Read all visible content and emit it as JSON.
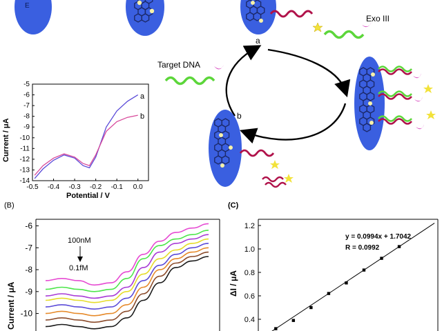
{
  "colors": {
    "electrode": "#3a5fe0",
    "graphene": "#1c2a6b",
    "probe": "#b0124a",
    "target": "#5cd63a",
    "exo": "#d84ac0",
    "star": "#f2e23a",
    "bead": "#f7f1a8"
  },
  "scheme": {
    "electrode_letter": "E",
    "target_label": "Target DNA",
    "exo_label": "Exo III",
    "step_a": "a",
    "step_b": "b"
  },
  "panelA_inset": {
    "ylabel": "Current / μA",
    "xlabel": "Potential / V",
    "curve_a_label": "a",
    "curve_b_label": "b"
  },
  "panelB": {
    "label": "(B)",
    "ylabel": "Current / μA",
    "high_label": "100nM",
    "low_label": "0.1fM"
  },
  "panelC": {
    "label": "(C)",
    "ylabel": "ΔI / μA",
    "equation": "y = 0.0994x + 1.7042",
    "r_value": "R = 0.0992"
  },
  "chart_data": [
    {
      "type": "line",
      "title": "",
      "xlabel": "Potential / V",
      "ylabel": "Current / μA",
      "xlim": [
        -0.5,
        0.05
      ],
      "ylim": [
        -14,
        -5
      ],
      "x_ticks": [
        "-0.5",
        "-0.4",
        "-0.3",
        "-0.2",
        "-0.1",
        "0.0"
      ],
      "y_ticks": [
        "-5",
        "-6",
        "-7",
        "-8",
        "-9",
        "-10",
        "-11",
        "-12",
        "-13",
        "-14"
      ],
      "series": [
        {
          "name": "a",
          "color": "#5a4ad8",
          "x": [
            -0.49,
            -0.45,
            -0.4,
            -0.35,
            -0.3,
            -0.26,
            -0.23,
            -0.2,
            -0.15,
            -0.1,
            -0.05,
            0.0
          ],
          "y": [
            -13.8,
            -12.9,
            -12.1,
            -11.6,
            -11.9,
            -12.6,
            -12.8,
            -11.8,
            -9.0,
            -7.5,
            -6.6,
            -6.0
          ]
        },
        {
          "name": "b",
          "color": "#d8489a",
          "x": [
            -0.49,
            -0.45,
            -0.4,
            -0.35,
            -0.3,
            -0.26,
            -0.23,
            -0.2,
            -0.15,
            -0.1,
            -0.05,
            0.0
          ],
          "y": [
            -13.5,
            -12.6,
            -11.9,
            -11.5,
            -11.8,
            -12.4,
            -12.6,
            -11.6,
            -9.4,
            -8.5,
            -8.1,
            -7.9
          ]
        }
      ]
    },
    {
      "type": "line",
      "title": "",
      "ylabel": "Current / μA",
      "ylim": [
        -10.8,
        -5.7
      ],
      "y_ticks": [
        "-6",
        "-7",
        "-8",
        "-9",
        "-10"
      ],
      "x": [
        0,
        1,
        2,
        3,
        4,
        5,
        6,
        7,
        8,
        9,
        10
      ],
      "series": [
        {
          "color": "#e64ad2",
          "values": [
            -8.5,
            -8.4,
            -8.5,
            -8.7,
            -8.6,
            -8.1,
            -7.3,
            -6.7,
            -6.3,
            -6.1,
            -5.9
          ]
        },
        {
          "color": "#4ce64a",
          "values": [
            -8.9,
            -8.8,
            -8.9,
            -9.0,
            -8.9,
            -8.4,
            -7.5,
            -6.9,
            -6.6,
            -6.4,
            -6.2
          ]
        },
        {
          "color": "#a83ad6",
          "values": [
            -9.2,
            -9.1,
            -9.2,
            -9.3,
            -9.2,
            -8.8,
            -7.9,
            -7.2,
            -6.8,
            -6.6,
            -6.4
          ]
        },
        {
          "color": "#e6dc2a",
          "values": [
            -9.4,
            -9.3,
            -9.4,
            -9.5,
            -9.4,
            -9.0,
            -8.2,
            -7.5,
            -7.1,
            -6.8,
            -6.6
          ]
        },
        {
          "color": "#5a4ad8",
          "values": [
            -9.7,
            -9.6,
            -9.7,
            -9.8,
            -9.7,
            -9.3,
            -8.5,
            -7.8,
            -7.3,
            -7.0,
            -6.8
          ]
        },
        {
          "color": "#e68a2a",
          "values": [
            -10.0,
            -9.9,
            -10.0,
            -10.1,
            -10.0,
            -9.6,
            -8.8,
            -8.0,
            -7.5,
            -7.2,
            -7.0
          ]
        },
        {
          "color": "#8a4a2a",
          "values": [
            -10.3,
            -10.2,
            -10.3,
            -10.4,
            -10.3,
            -9.9,
            -9.1,
            -8.3,
            -7.7,
            -7.4,
            -7.2
          ]
        },
        {
          "color": "#1a1a1a",
          "values": [
            -10.6,
            -10.5,
            -10.6,
            -10.7,
            -10.6,
            -10.2,
            -9.4,
            -8.6,
            -7.9,
            -7.6,
            -7.4
          ]
        }
      ]
    },
    {
      "type": "scatter",
      "title": "",
      "ylabel": "ΔI / μA",
      "ylim": [
        0.3,
        1.2
      ],
      "y_ticks": [
        "1.2",
        "1.0",
        "0.8",
        "0.6",
        "0.4"
      ],
      "x": [
        -15,
        -14,
        -13,
        -12,
        -11,
        -10,
        -9,
        -8
      ],
      "y": [
        0.32,
        0.39,
        0.5,
        0.62,
        0.71,
        0.82,
        0.92,
        1.02
      ],
      "fit": {
        "slope": 0.0994,
        "intercept": 1.7042
      }
    }
  ]
}
